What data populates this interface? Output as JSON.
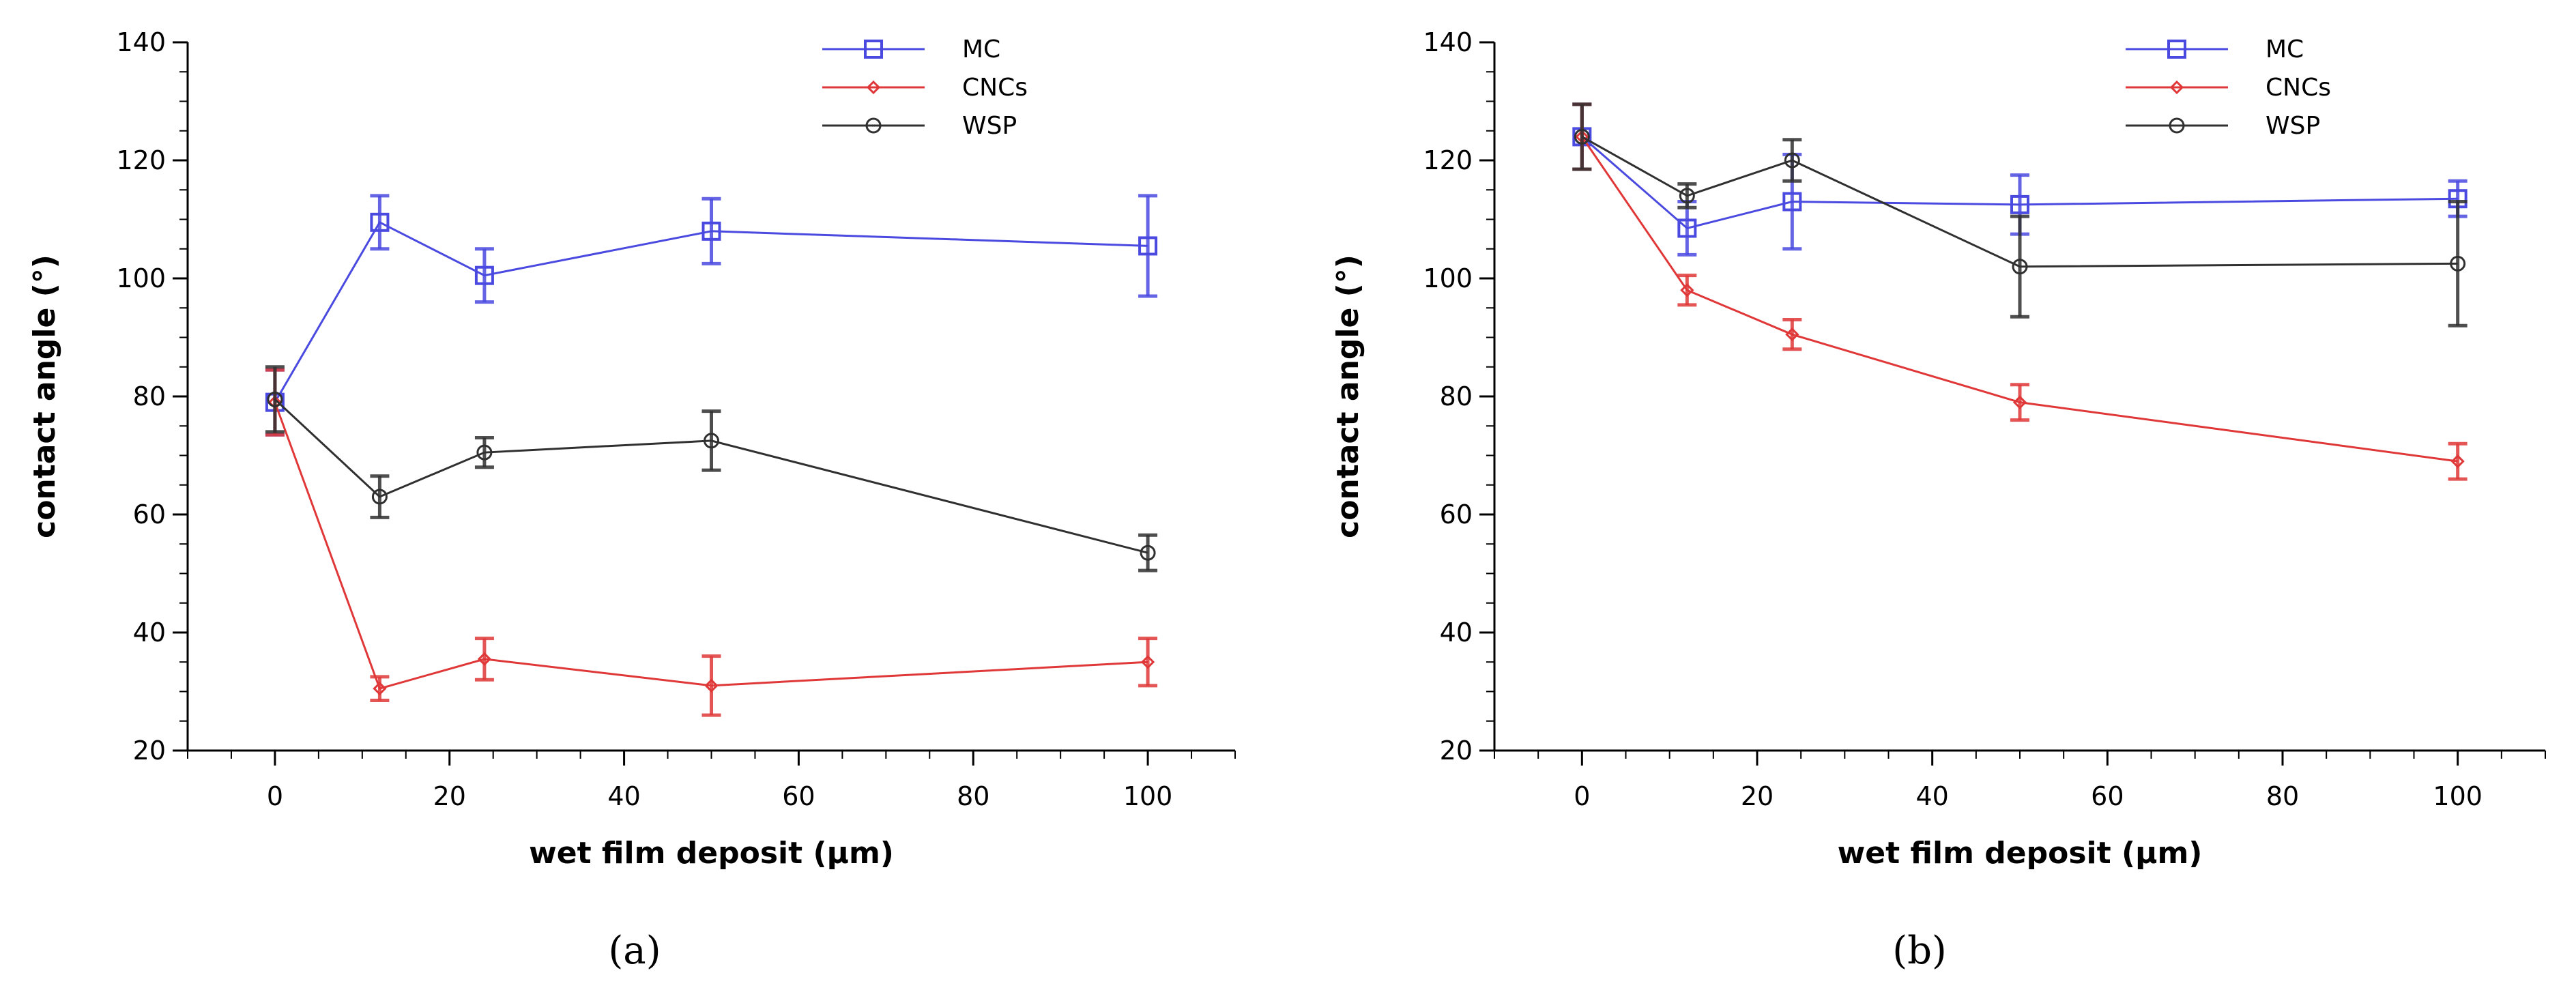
{
  "chart_data": [
    {
      "type": "line",
      "panel_label": "a",
      "xlabel": "wet film deposit (µm)",
      "ylabel": "contact angle (°)",
      "xlim": [
        -10,
        110
      ],
      "ylim": [
        20,
        140
      ],
      "xticks": [
        0,
        20,
        40,
        60,
        80,
        100
      ],
      "yticks": [
        20,
        40,
        60,
        80,
        100,
        120,
        140
      ],
      "legend_position": "top-right",
      "series": [
        {
          "name": "MC",
          "color": "#4a4ae0",
          "marker": "square",
          "x": [
            0,
            12,
            24,
            50,
            100
          ],
          "y": [
            79,
            109.5,
            100.5,
            108,
            105.5
          ],
          "err": [
            5.5,
            4.5,
            4.5,
            5.5,
            8.5
          ]
        },
        {
          "name": "CNCs",
          "color": "#e03838",
          "marker": "diamond",
          "x": [
            0,
            12,
            24,
            50,
            100
          ],
          "y": [
            79,
            30.5,
            35.5,
            31,
            35
          ],
          "err": [
            5.5,
            2,
            3.5,
            5,
            4
          ]
        },
        {
          "name": "WSP",
          "color": "#303030",
          "marker": "circle",
          "x": [
            0,
            12,
            24,
            50,
            100
          ],
          "y": [
            79.5,
            63,
            70.5,
            72.5,
            53.5
          ],
          "err": [
            5.5,
            3.5,
            2.5,
            5,
            3
          ]
        }
      ]
    },
    {
      "type": "line",
      "panel_label": "b",
      "xlabel": "wet film deposit (µm)",
      "ylabel": "contact angle (°)",
      "xlim": [
        -10,
        110
      ],
      "ylim": [
        20,
        140
      ],
      "xticks": [
        0,
        20,
        40,
        60,
        80,
        100
      ],
      "yticks": [
        20,
        40,
        60,
        80,
        100,
        120,
        140
      ],
      "legend_position": "top-right",
      "series": [
        {
          "name": "MC",
          "color": "#4a4ae0",
          "marker": "square",
          "x": [
            0,
            12,
            24,
            50,
            100
          ],
          "y": [
            124,
            108.5,
            113,
            112.5,
            113.5
          ],
          "err": [
            5.5,
            4.5,
            8,
            5,
            3
          ]
        },
        {
          "name": "CNCs",
          "color": "#e03838",
          "marker": "diamond",
          "x": [
            0,
            12,
            24,
            50,
            100
          ],
          "y": [
            124,
            98,
            90.5,
            79,
            69
          ],
          "err": [
            5.5,
            2.5,
            2.5,
            3,
            3
          ]
        },
        {
          "name": "WSP",
          "color": "#303030",
          "marker": "circle",
          "x": [
            0,
            12,
            24,
            50,
            100
          ],
          "y": [
            124,
            114,
            120,
            102,
            102.5
          ],
          "err": [
            5.5,
            2,
            3.5,
            8.5,
            10.5
          ]
        }
      ]
    }
  ],
  "captions": [
    "(a)",
    "(b)"
  ]
}
